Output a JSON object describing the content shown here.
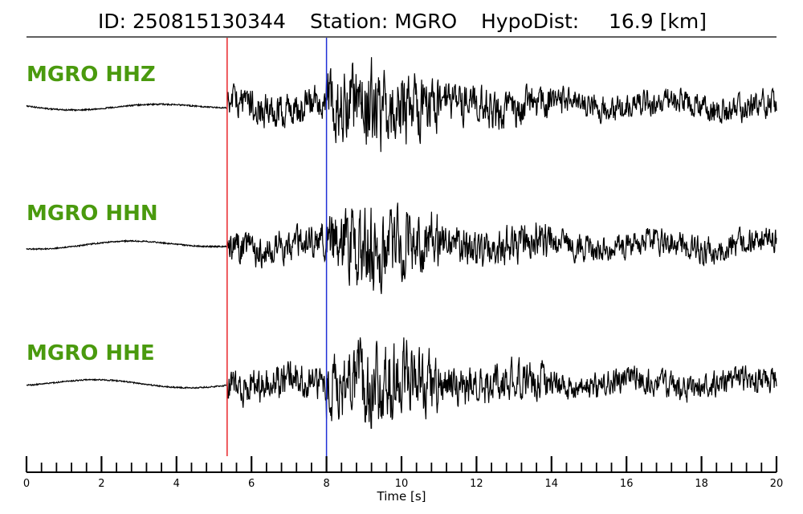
{
  "header": {
    "id_text": "ID: 250815130344",
    "station_text": "Station: MGRO",
    "dist_label": "HypoDist:",
    "dist_value": "16.9 [km]"
  },
  "chart_data": {
    "type": "line",
    "xlabel": "Time [s]",
    "xlim": [
      0,
      20
    ],
    "major_ticks": [
      0,
      2,
      4,
      6,
      8,
      10,
      12,
      14,
      16,
      18,
      20
    ],
    "minor_tick_step": 0.4,
    "p_pick_time": 5.35,
    "s_pick_time": 8.0,
    "p_pick_color": "#e8262a",
    "s_pick_color": "#1f2fd6",
    "label_color": "#4a9a0e",
    "trace_color": "#000000",
    "series": [
      {
        "name": "MGRO HHZ"
      },
      {
        "name": "MGRO HHN"
      },
      {
        "name": "MGRO HHE"
      }
    ]
  }
}
